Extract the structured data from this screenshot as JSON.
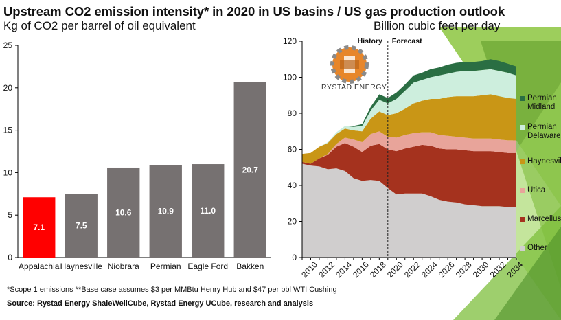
{
  "title": "Upstream CO2 emission intensity* in 2020 in US basins / US gas production outlook",
  "left_subtitle": "Kg of CO2 per barrel of oil equivalent",
  "right_subtitle": "Billion cubic feet per day",
  "logo_text": "RYSTAD ENERGY",
  "footnote": "*Scope 1 emissions **Base case assumes $3 per MMBtu Henry Hub and $47 per bbl WTI Cushing",
  "source": "Source: Rystad Energy ShaleWellCube, Rystad Energy UCube, research and analysis",
  "colors": {
    "highlight_bar": "#ff0000",
    "bar": "#767171",
    "other": "#d0cece",
    "marcellus": "#a5321e",
    "utica": "#e8a49a",
    "haynesville": "#c99616",
    "permian_delaware": "#cdeedd",
    "permian_midland": "#2a6e43",
    "accent_green": "#6fbf3a"
  },
  "chart_data": [
    {
      "type": "bar",
      "categories": [
        "Appalachia",
        "Haynesville",
        "Niobrara",
        "Permian",
        "Eagle Ford",
        "Bakken"
      ],
      "values": [
        7.1,
        7.5,
        10.6,
        10.9,
        11.0,
        20.7
      ],
      "data_labels": [
        "7.1",
        "7.5",
        "10.6",
        "10.9",
        "11.0",
        "20.7"
      ],
      "highlight_index": 0,
      "ylim": [
        0,
        25
      ],
      "yticks": [
        0,
        5,
        10,
        15,
        20,
        25
      ],
      "grid": false
    },
    {
      "type": "area",
      "stacked": true,
      "x": [
        2010,
        2011,
        2012,
        2013,
        2014,
        2015,
        2016,
        2017,
        2018,
        2019,
        2020,
        2021,
        2022,
        2023,
        2024,
        2025,
        2026,
        2027,
        2028,
        2029,
        2030,
        2031,
        2032,
        2033,
        2034,
        2035
      ],
      "xticks": [
        "2010",
        "2012",
        "2014",
        "2016",
        "2018",
        "2020",
        "2022",
        "2024",
        "2026",
        "2028",
        "2030",
        "2032",
        "2034"
      ],
      "ylim": [
        0,
        120
      ],
      "yticks": [
        0,
        20,
        40,
        60,
        80,
        100,
        120
      ],
      "annotations": [
        "History",
        "Forecast"
      ],
      "divider_x": 2020,
      "legend_position": "right",
      "series": [
        {
          "name": "Other",
          "color_key": "other",
          "values": [
            52,
            51,
            50.5,
            49,
            49.5,
            48,
            44,
            42.5,
            43,
            42.5,
            38.5,
            35,
            35.5,
            35.5,
            35.5,
            34,
            32,
            31,
            30.5,
            29.5,
            29,
            28.5,
            28.5,
            28.5,
            28,
            28
          ]
        },
        {
          "name": "Marcellus",
          "color_key": "marcellus",
          "values": [
            1,
            1,
            4.5,
            8,
            12,
            15.5,
            17.5,
            16,
            19,
            20.5,
            21.5,
            24,
            25,
            26,
            27,
            28,
            28.5,
            29,
            29.5,
            30,
            30,
            30.5,
            30.5,
            30,
            30,
            30
          ]
        },
        {
          "name": "Utica",
          "color_key": "utica",
          "values": [
            0,
            0,
            0,
            0.5,
            1.5,
            3,
            4,
            5.5,
            6.5,
            7,
            7,
            7.5,
            7.5,
            7.5,
            7,
            7.5,
            7.5,
            7.5,
            7,
            7,
            7,
            7,
            7,
            7,
            7,
            7
          ]
        },
        {
          "name": "Haynesville",
          "color_key": "haynesville",
          "values": [
            4.5,
            6,
            6.5,
            6,
            5.5,
            5,
            5,
            6,
            8.5,
            11,
            12,
            13.5,
            14.5,
            16.5,
            17.5,
            18.5,
            20,
            21.5,
            22.5,
            23,
            23.5,
            24,
            24.5,
            24,
            23.5,
            23
          ]
        },
        {
          "name": "Permian Delaware",
          "color_key": "permian_delaware",
          "values": [
            0,
            0,
            0,
            0.5,
            1,
            1.5,
            2,
            3,
            4.5,
            6.5,
            6.5,
            8,
            10,
            11.5,
            11.5,
            12,
            13,
            13,
            13.5,
            14,
            14,
            14,
            14,
            14,
            14,
            13
          ]
        },
        {
          "name": "Permian Midland",
          "color_key": "permian_midland",
          "values": [
            0,
            0,
            0,
            0,
            0,
            0,
            0.5,
            1,
            2,
            3,
            3,
            3.5,
            3.5,
            4,
            4,
            4.5,
            4.5,
            5,
            5,
            5,
            5,
            5,
            5.5,
            5.5,
            5,
            5
          ]
        }
      ]
    }
  ]
}
